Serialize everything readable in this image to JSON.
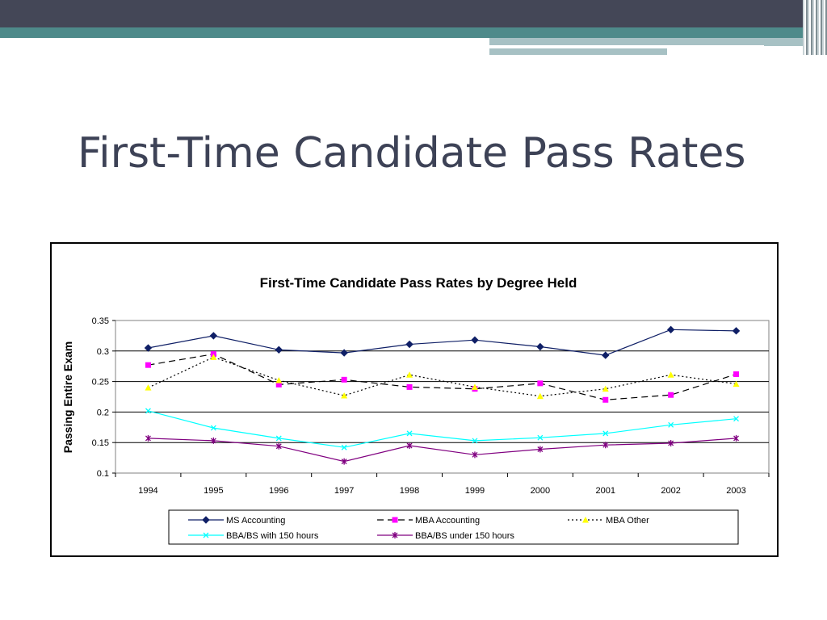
{
  "slide": {
    "title": "First-Time Candidate Pass Rates"
  },
  "colors": {
    "banner_dark": "#444757",
    "banner_teal": "#4e8a8a",
    "title_text": "#3d4256"
  },
  "chart_data": {
    "type": "line",
    "title": "First-Time Candidate Pass Rates by Degree Held",
    "xlabel": "",
    "ylabel": "Passing Entire Exam",
    "ylim": [
      0.1,
      0.35
    ],
    "yticks": [
      "0.1",
      "0.15",
      "0.2",
      "0.25",
      "0.3",
      "0.35"
    ],
    "grid": true,
    "legend_position": "bottom",
    "categories": [
      "1994",
      "1995",
      "1996",
      "1997",
      "1998",
      "1999",
      "2000",
      "2001",
      "2002",
      "2003"
    ],
    "series": [
      {
        "name": "MS Accounting",
        "color": "#0f1f66",
        "dash": "",
        "marker": "diamond",
        "values": [
          0.305,
          0.325,
          0.302,
          0.297,
          0.311,
          0.318,
          0.307,
          0.293,
          0.335,
          0.333
        ]
      },
      {
        "name": "MBA Accounting",
        "color": "#ff00ff",
        "line_color": "#000000",
        "dash": "8,5",
        "marker": "square",
        "values": [
          0.277,
          0.295,
          0.245,
          0.253,
          0.241,
          0.238,
          0.247,
          0.22,
          0.228,
          0.262
        ]
      },
      {
        "name": "MBA Other",
        "color": "#ffff00",
        "line_color": "#000000",
        "dash": "2,3",
        "marker": "triangle",
        "values": [
          0.24,
          0.29,
          0.252,
          0.227,
          0.261,
          0.241,
          0.226,
          0.238,
          0.261,
          0.246
        ]
      },
      {
        "name": "BBA/BS with 150 hours",
        "color": "#00ffff",
        "dash": "",
        "marker": "x",
        "values": [
          0.202,
          0.174,
          0.157,
          0.142,
          0.165,
          0.153,
          0.158,
          0.165,
          0.179,
          0.189
        ]
      },
      {
        "name": "BBA/BS under 150 hours",
        "color": "#800080",
        "dash": "",
        "marker": "star",
        "values": [
          0.157,
          0.153,
          0.144,
          0.119,
          0.145,
          0.13,
          0.139,
          0.146,
          0.149,
          0.157
        ]
      }
    ]
  }
}
